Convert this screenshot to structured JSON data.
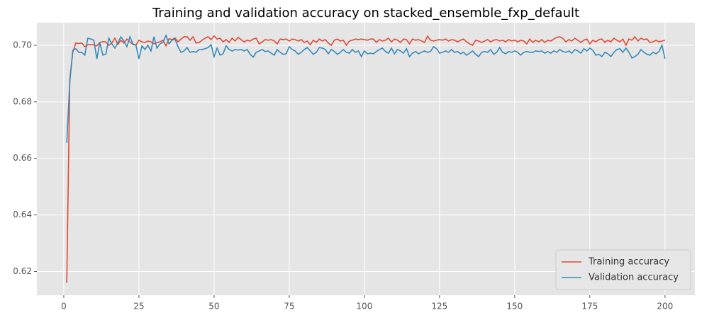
{
  "chart_data": {
    "type": "line",
    "title": "Training and validation accuracy on stacked_ensemble_fxp_default",
    "x": [
      1,
      2,
      3,
      4,
      5,
      6,
      7,
      8,
      9,
      10,
      11,
      12,
      13,
      14,
      15,
      16,
      17,
      18,
      19,
      20,
      21,
      22,
      23,
      24,
      25,
      26,
      27,
      28,
      29,
      30,
      31,
      32,
      33,
      34,
      35,
      36,
      37,
      38,
      39,
      40,
      41,
      42,
      43,
      44,
      45,
      46,
      47,
      48,
      49,
      50,
      51,
      52,
      53,
      54,
      55,
      56,
      57,
      58,
      59,
      60,
      61,
      62,
      63,
      64,
      65,
      66,
      67,
      68,
      69,
      70,
      71,
      72,
      73,
      74,
      75,
      76,
      77,
      78,
      79,
      80,
      81,
      82,
      83,
      84,
      85,
      86,
      87,
      88,
      89,
      90,
      91,
      92,
      93,
      94,
      95,
      96,
      97,
      98,
      99,
      100,
      101,
      102,
      103,
      104,
      105,
      106,
      107,
      108,
      109,
      110,
      111,
      112,
      113,
      114,
      115,
      116,
      117,
      118,
      119,
      120,
      121,
      122,
      123,
      124,
      125,
      126,
      127,
      128,
      129,
      130,
      131,
      132,
      133,
      134,
      135,
      136,
      137,
      138,
      139,
      140,
      141,
      142,
      143,
      144,
      145,
      146,
      147,
      148,
      149,
      150,
      151,
      152,
      153,
      154,
      155,
      156,
      157,
      158,
      159,
      160,
      161,
      162,
      163,
      164,
      165,
      166,
      167,
      168,
      169,
      170,
      171,
      172,
      173,
      174,
      175,
      176,
      177,
      178,
      179,
      180,
      181,
      182,
      183,
      184,
      185,
      186,
      187,
      188,
      189,
      190,
      191,
      192,
      193,
      194,
      195,
      196,
      197,
      198,
      199,
      200
    ],
    "series": [
      {
        "name": "Training accuracy",
        "color": "#E24A33",
        "values": [
          0.616,
          0.688,
          0.6975,
          0.7008,
          0.7006,
          0.7008,
          0.6995,
          0.7002,
          0.7003,
          0.7001,
          0.6998,
          0.701,
          0.7013,
          0.7012,
          0.7,
          0.7008,
          0.7025,
          0.7003,
          0.7018,
          0.7008,
          0.7022,
          0.7012,
          0.7003,
          0.7,
          0.7018,
          0.7012,
          0.701,
          0.7015,
          0.7012,
          0.7005,
          0.701,
          0.7012,
          0.7018,
          0.6998,
          0.7023,
          0.702,
          0.7026,
          0.7012,
          0.7022,
          0.703,
          0.703,
          0.7018,
          0.703,
          0.7008,
          0.701,
          0.7018,
          0.7025,
          0.703,
          0.702,
          0.7033,
          0.7022,
          0.7025,
          0.7012,
          0.702,
          0.701,
          0.7025,
          0.7015,
          0.7028,
          0.702,
          0.7012,
          0.7018,
          0.7015,
          0.7022,
          0.7025,
          0.7005,
          0.7012,
          0.702,
          0.7018,
          0.702,
          0.7015,
          0.7005,
          0.7022,
          0.702,
          0.7022,
          0.7015,
          0.7022,
          0.702,
          0.7015,
          0.702,
          0.701,
          0.7015,
          0.7002,
          0.7018,
          0.701,
          0.7022,
          0.7015,
          0.702,
          0.7008,
          0.7,
          0.7018,
          0.7022,
          0.7015,
          0.7018,
          0.7,
          0.7015,
          0.7018,
          0.7022,
          0.702,
          0.7022,
          0.702,
          0.7018,
          0.7022,
          0.7022,
          0.701,
          0.702,
          0.7015,
          0.7018,
          0.7025,
          0.7012,
          0.7022,
          0.7018,
          0.701,
          0.7022,
          0.702,
          0.7005,
          0.7022,
          0.7018,
          0.702,
          0.7015,
          0.701,
          0.7032,
          0.7018,
          0.7015,
          0.7018,
          0.702,
          0.7018,
          0.7022,
          0.7015,
          0.702,
          0.7018,
          0.7012,
          0.7018,
          0.7022,
          0.7012,
          0.7005,
          0.7,
          0.7018,
          0.7015,
          0.701,
          0.7015,
          0.702,
          0.7012,
          0.7018,
          0.702,
          0.7015,
          0.7018,
          0.7012,
          0.702,
          0.7015,
          0.7018,
          0.7012,
          0.7018,
          0.7015,
          0.7005,
          0.7022,
          0.701,
          0.7018,
          0.7012,
          0.702,
          0.701,
          0.7018,
          0.7015,
          0.7022,
          0.7028,
          0.703,
          0.7025,
          0.7012,
          0.702,
          0.7015,
          0.7025,
          0.7018,
          0.701,
          0.7018,
          0.7022,
          0.7005,
          0.7018,
          0.7012,
          0.702,
          0.7022,
          0.701,
          0.7018,
          0.7012,
          0.7025,
          0.7018,
          0.7012,
          0.7022,
          0.7,
          0.7022,
          0.7018,
          0.703,
          0.7015,
          0.7025,
          0.702,
          0.7022,
          0.701,
          0.7012,
          0.7018,
          0.7012,
          0.7015,
          0.7018
        ]
      },
      {
        "name": "Validation accuracy",
        "color": "#348ABD",
        "values": [
          0.6655,
          0.687,
          0.6982,
          0.6988,
          0.6975,
          0.6975,
          0.6965,
          0.7025,
          0.7022,
          0.7018,
          0.6952,
          0.701,
          0.6965,
          0.6968,
          0.7025,
          0.7005,
          0.699,
          0.701,
          0.703,
          0.7015,
          0.6995,
          0.703,
          0.7005,
          0.7,
          0.6952,
          0.6998,
          0.6985,
          0.7,
          0.698,
          0.703,
          0.699,
          0.7005,
          0.701,
          0.7035,
          0.7005,
          0.7018,
          0.7022,
          0.6995,
          0.6975,
          0.698,
          0.6992,
          0.6975,
          0.6978,
          0.6975,
          0.6985,
          0.6985,
          0.6988,
          0.6992,
          0.7002,
          0.696,
          0.699,
          0.6965,
          0.697,
          0.6998,
          0.6985,
          0.698,
          0.6985,
          0.6983,
          0.6985,
          0.698,
          0.6985,
          0.6968,
          0.6958,
          0.6975,
          0.698,
          0.6985,
          0.6978,
          0.698,
          0.6972,
          0.6965,
          0.6985,
          0.6975,
          0.6968,
          0.697,
          0.6995,
          0.6985,
          0.698,
          0.6968,
          0.6975,
          0.6985,
          0.6992,
          0.698,
          0.6968,
          0.6975,
          0.6992,
          0.699,
          0.6985,
          0.697,
          0.6985,
          0.6978,
          0.6968,
          0.6975,
          0.6985,
          0.6975,
          0.6972,
          0.6985,
          0.6975,
          0.698,
          0.696,
          0.698,
          0.697,
          0.6972,
          0.697,
          0.6978,
          0.6985,
          0.699,
          0.6978,
          0.6972,
          0.699,
          0.697,
          0.6985,
          0.698,
          0.6972,
          0.6988,
          0.696,
          0.6972,
          0.6978,
          0.697,
          0.6975,
          0.698,
          0.6975,
          0.6978,
          0.6995,
          0.6988,
          0.6972,
          0.6975,
          0.698,
          0.6975,
          0.6985,
          0.6975,
          0.6978,
          0.697,
          0.6975,
          0.6965,
          0.6972,
          0.698,
          0.6968,
          0.696,
          0.6975,
          0.6978,
          0.6975,
          0.6985,
          0.6968,
          0.6975,
          0.6992,
          0.6975,
          0.697,
          0.6978,
          0.6975,
          0.698,
          0.6975,
          0.6965,
          0.6975,
          0.6978,
          0.6975,
          0.6975,
          0.698,
          0.6978,
          0.698,
          0.6972,
          0.6978,
          0.6972,
          0.698,
          0.6975,
          0.6985,
          0.6978,
          0.6975,
          0.698,
          0.6972,
          0.6985,
          0.698,
          0.6972,
          0.6988,
          0.698,
          0.699,
          0.6982,
          0.6965,
          0.6968,
          0.696,
          0.6975,
          0.697,
          0.696,
          0.6975,
          0.6985,
          0.6988,
          0.6975,
          0.699,
          0.6975,
          0.6955,
          0.696,
          0.6968,
          0.6985,
          0.6975,
          0.6968,
          0.6965,
          0.6975,
          0.697,
          0.6978,
          0.7,
          0.6952
        ]
      }
    ],
    "xlim": [
      -8.95,
      209.95
    ],
    "xticks": [
      0,
      25,
      50,
      75,
      100,
      125,
      150,
      175,
      200
    ],
    "ylim": [
      0.6116,
      0.708
    ],
    "yticks": [
      0.62,
      0.64,
      0.66,
      0.68,
      {
        "value": 0.7,
        "label": "0.70"
      }
    ],
    "grid": true,
    "legend": "lower right"
  }
}
